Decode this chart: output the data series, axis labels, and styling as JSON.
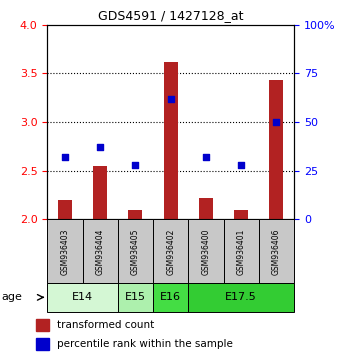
{
  "title": "GDS4591 / 1427128_at",
  "samples": [
    "GSM936403",
    "GSM936404",
    "GSM936405",
    "GSM936402",
    "GSM936400",
    "GSM936401",
    "GSM936406"
  ],
  "transformed_counts": [
    2.2,
    2.55,
    2.1,
    3.62,
    2.22,
    2.1,
    3.43
  ],
  "percentile_ranks": [
    32,
    37,
    28,
    62,
    32,
    28,
    50
  ],
  "ylim_left": [
    2.0,
    4.0
  ],
  "ylim_right": [
    0,
    100
  ],
  "yticks_left": [
    2.0,
    2.5,
    3.0,
    3.5,
    4.0
  ],
  "yticks_right": [
    0,
    25,
    50,
    75,
    100
  ],
  "bar_color": "#B22222",
  "dot_color": "#0000CC",
  "age_groups": [
    {
      "label": "E14",
      "samples": [
        0,
        1
      ],
      "color": "#d4f7d4"
    },
    {
      "label": "E15",
      "samples": [
        2
      ],
      "color": "#adf0ad"
    },
    {
      "label": "E16",
      "samples": [
        3
      ],
      "color": "#44dd44"
    },
    {
      "label": "E17.5",
      "samples": [
        4,
        5,
        6
      ],
      "color": "#33cc33"
    }
  ],
  "age_label": "age",
  "legend_bar_label": "transformed count",
  "legend_dot_label": "percentile rank within the sample",
  "sample_box_color": "#c8c8c8",
  "bar_width": 0.4,
  "dot_size": 25,
  "gridline_values": [
    2.5,
    3.0,
    3.5
  ],
  "title_fontsize": 9,
  "tick_fontsize": 8,
  "legend_fontsize": 7.5,
  "sample_fontsize": 5.5,
  "age_fontsize": 8
}
